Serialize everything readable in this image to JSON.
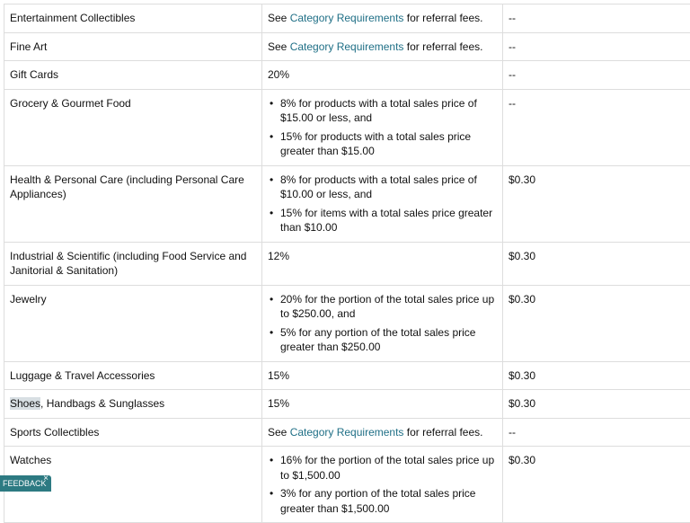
{
  "table": {
    "rows": [
      {
        "category": "Entertainment Collectibles",
        "type": "link",
        "see": "See ",
        "link": "Category Requirements",
        "rest": " for referral fees.",
        "min_fee": "--"
      },
      {
        "category": "Fine Art",
        "type": "link",
        "see": "See ",
        "link": "Category Requirements",
        "rest": " for referral fees.",
        "min_fee": "--"
      },
      {
        "category": "Gift Cards",
        "type": "text",
        "fee": "20%",
        "min_fee": "--"
      },
      {
        "category": "Grocery & Gourmet Food",
        "type": "list",
        "bullets": [
          "8% for products with a total sales price of $15.00 or less, and",
          "15% for products with a total sales price greater than $15.00"
        ],
        "min_fee": "--"
      },
      {
        "category": "Health & Personal Care (including Personal Care Appliances)",
        "type": "list",
        "bullets": [
          "8% for products with a total sales price of $10.00 or less, and",
          "15% for items with a total sales price greater than $10.00"
        ],
        "min_fee": "$0.30"
      },
      {
        "category": "Industrial & Scientific (including Food Service and Janitorial & Sanitation)",
        "type": "text",
        "fee": "12%",
        "min_fee": "$0.30"
      },
      {
        "category": "Jewelry",
        "type": "list",
        "bullets": [
          "20% for the portion of the total sales price up to $250.00, and",
          "5% for any portion of the total sales price greater than $250.00"
        ],
        "min_fee": "$0.30"
      },
      {
        "category": "Luggage & Travel Accessories",
        "type": "text",
        "fee": "15%",
        "min_fee": "$0.30"
      },
      {
        "category_hl": "Shoes",
        "category_rest": ", Handbags & Sunglasses",
        "type": "text",
        "fee": "15%",
        "min_fee": "$0.30"
      },
      {
        "category": "Sports Collectibles",
        "type": "link",
        "see": "See ",
        "link": "Category Requirements",
        "rest": " for referral fees.",
        "min_fee": "--"
      },
      {
        "category": "Watches",
        "type": "list",
        "bullets": [
          "16% for the portion of the total sales price up to $1,500.00",
          "3% for any portion of the total sales price greater than $1,500.00"
        ],
        "min_fee": "$0.30"
      }
    ]
  },
  "feedback": {
    "label": "FEEDBACK",
    "close": "×"
  }
}
